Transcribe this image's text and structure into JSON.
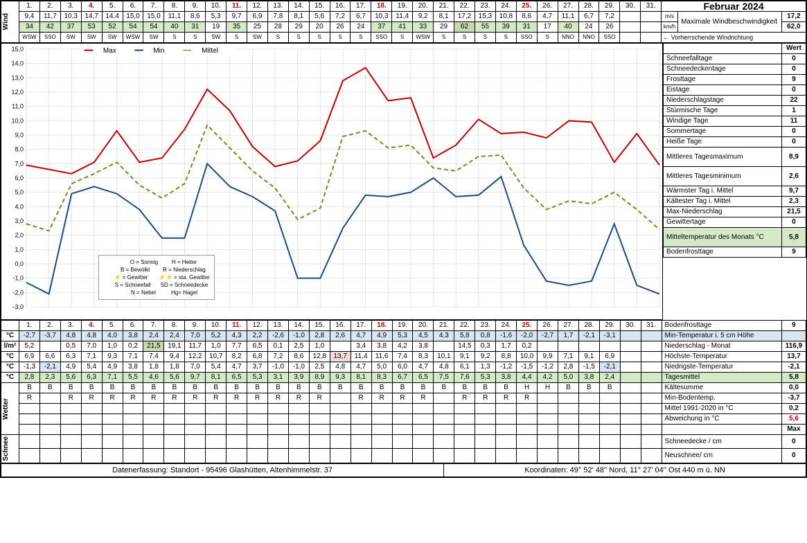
{
  "month_title": "Februar 2024",
  "days": [
    1,
    2,
    3,
    4,
    5,
    6,
    7,
    8,
    9,
    10,
    11,
    12,
    13,
    14,
    15,
    16,
    17,
    18,
    19,
    20,
    21,
    22,
    23,
    24,
    25,
    26,
    27,
    28,
    29,
    30,
    31
  ],
  "red_days": [
    4,
    11,
    18,
    25
  ],
  "wind": {
    "ms": [
      "9,4",
      "11,7",
      "10,3",
      "14,7",
      "14,4",
      "15,0",
      "15,0",
      "11,1",
      "8,6",
      "5,3",
      "9,7",
      "6,9",
      "7,8",
      "8,1",
      "5,6",
      "7,2",
      "6,7",
      "10,3",
      "11,4",
      "9,2",
      "8,1",
      "17,2",
      "15,3",
      "10,8",
      "8,6",
      "4,7",
      "11,1",
      "6,7",
      "7,2",
      "",
      ""
    ],
    "kmh": [
      "34",
      "42",
      "37",
      "53",
      "52",
      "54",
      "54",
      "40",
      "31",
      "19",
      "35",
      "25",
      "28",
      "29",
      "20",
      "26",
      "24",
      "37",
      "41",
      "33",
      "29",
      "62",
      "55",
      "39",
      "31",
      "17",
      "40",
      "24",
      "26",
      "",
      ""
    ],
    "dir": [
      "WSW",
      "SSO",
      "SW",
      "SW",
      "SW",
      "WSW",
      "SW",
      "S",
      "S",
      "SW",
      "S",
      "SW",
      "S",
      "S",
      "S",
      "S",
      "S",
      "SSO",
      "S",
      "WSW",
      "S",
      "S",
      "S",
      "S",
      "SSO",
      "S",
      "NNO",
      "NNO",
      "SSO",
      "",
      ""
    ]
  },
  "wind_summary": {
    "label_max": "Maximale Windbeschwindigkeit",
    "ms_max": "17,2",
    "ms_unit": "m/s",
    "kmh_max": "62,0",
    "kmh_unit": "km/h",
    "dir_label": "← Vorherrschende Windrichtung"
  },
  "chart": {
    "xlabels": [
      1,
      2,
      3,
      4,
      5,
      6,
      7,
      8,
      9,
      10,
      11,
      12,
      13,
      14,
      15,
      16,
      17,
      18,
      19,
      20,
      21,
      22,
      23,
      24,
      25,
      26,
      27,
      28,
      29
    ],
    "max": [
      6.9,
      6.6,
      6.3,
      7.1,
      9.3,
      7.1,
      7.4,
      9.4,
      12.2,
      10.7,
      8.2,
      6.8,
      7.2,
      8.6,
      12.8,
      13.7,
      11.4,
      11.6,
      7.4,
      8.3,
      10.1,
      9.1,
      9.2,
      8.8,
      10.0,
      9.9,
      7.1,
      9.1,
      6.9
    ],
    "min": [
      -1.3,
      -2.1,
      4.9,
      5.4,
      4.9,
      3.8,
      1.8,
      1.8,
      7.0,
      5.4,
      4.7,
      3.7,
      -1.0,
      -1.0,
      2.5,
      4.8,
      4.7,
      5.0,
      6.0,
      4.7,
      4.8,
      6.1,
      1.3,
      -1.2,
      -1.5,
      -1.2,
      2.8,
      -1.5,
      -2.1
    ],
    "mittel": [
      2.8,
      2.3,
      5.6,
      6.3,
      7.1,
      5.5,
      4.6,
      5.6,
      9.7,
      8.1,
      6.5,
      5.3,
      3.1,
      3.9,
      8.9,
      9.3,
      8.1,
      8.3,
      6.7,
      6.5,
      7.5,
      7.6,
      5.3,
      3.8,
      4.4,
      4.2,
      5.0,
      3.8,
      2.4
    ],
    "ymin": -3,
    "ymax": 15,
    "ystep": 1,
    "colors": {
      "max": "#c00000",
      "min": "#1f497d",
      "mittel": "#6b8e23"
    },
    "legend": [
      "Max",
      "Min",
      "Mittel"
    ],
    "symbol_legend": [
      [
        "O = Sonnig",
        "H = Heiter"
      ],
      [
        "B = Bewölkt",
        "R = Niederschlag"
      ],
      [
        "⚡ = Gewitter",
        "⚡⚡ = sta. Gewitter"
      ],
      [
        "S = Schneefall",
        "SD = Schneedecke"
      ],
      [
        "N = Nebel",
        "Hg= Hagel"
      ]
    ]
  },
  "rows": {
    "c_min5": {
      "label": "°C",
      "vals": [
        "-2,7",
        "-3,7",
        "4,8",
        "4,8",
        "4,0",
        "3,8",
        "2,4",
        "2,4",
        "7,0",
        "5,2",
        "4,3",
        "2,2",
        "-2,6",
        "-1,0",
        "2,8",
        "2,6",
        "4,7",
        "4,9",
        "5,3",
        "4,5",
        "4,3",
        "5,8",
        "0,8",
        "-1,6",
        "-2,0",
        "-2,7",
        "1,7",
        "-2,1",
        "-3,1",
        "",
        ""
      ],
      "rlabel": "Min-Temperatur i. 5 cm Höhe",
      "rval": ""
    },
    "precip": {
      "label": "l/m²",
      "vals": [
        "5,2",
        "",
        "0,5",
        "7,0",
        "1,0",
        "0,2",
        "21,5",
        "19,1",
        "11,7",
        "1,0",
        "7,7",
        "6,5",
        "0,1",
        "2,5",
        "1,0",
        "",
        "3,4",
        "3,8",
        "4,2",
        "3,8",
        "",
        "14,5",
        "0,3",
        "1,7",
        "0,2",
        "",
        "",
        "",
        "",
        "",
        ""
      ],
      "rlabel": "Niederschlag - Monat",
      "rval": "116,9"
    },
    "c_max": {
      "label": "°C",
      "vals": [
        "6,9",
        "6,6",
        "6,3",
        "7,1",
        "9,3",
        "7,1",
        "7,4",
        "9,4",
        "12,2",
        "10,7",
        "8,2",
        "6,8",
        "7,2",
        "8,6",
        "12,8",
        "13,7",
        "11,4",
        "11,6",
        "7,4",
        "8,3",
        "10,1",
        "9,1",
        "9,2",
        "8,8",
        "10,0",
        "9,9",
        "7,1",
        "9,1",
        "6,9",
        "",
        ""
      ],
      "rlabel": "Höchste-Temperatur",
      "rval": "13,7"
    },
    "c_min": {
      "label": "°C",
      "vals": [
        "-1,3",
        "-2,1",
        "4,9",
        "5,4",
        "4,9",
        "3,8",
        "1,8",
        "1,8",
        "7,0",
        "5,4",
        "4,7",
        "3,7",
        "-1,0",
        "-1,0",
        "2,5",
        "4,8",
        "4,7",
        "5,0",
        "6,0",
        "4,7",
        "4,8",
        "6,1",
        "1,3",
        "-1,2",
        "-1,5",
        "-1,2",
        "2,8",
        "-1,5",
        "-2,1",
        "",
        ""
      ],
      "rlabel": "Niedrigste-Temperatur",
      "rval": "-2,1"
    },
    "c_mean": {
      "label": "°C",
      "vals": [
        "2,8",
        "2,3",
        "5,6",
        "6,3",
        "7,1",
        "5,5",
        "4,6",
        "5,6",
        "9,7",
        "8,1",
        "6,5",
        "5,3",
        "3,1",
        "3,9",
        "8,9",
        "9,3",
        "8,1",
        "8,3",
        "6,7",
        "6,5",
        "7,5",
        "7,6",
        "5,3",
        "3,8",
        "4,4",
        "4,2",
        "5,0",
        "3,8",
        "2,4",
        "",
        ""
      ],
      "rlabel": "Tagesmittel",
      "rval": "5,8"
    },
    "w1": [
      "B",
      "B",
      "B",
      "B",
      "B",
      "B",
      "B",
      "B",
      "B",
      "B",
      "B",
      "B",
      "B",
      "B",
      "B",
      "B",
      "B",
      "B",
      "B",
      "B",
      "B",
      "B",
      "B",
      "B",
      "H",
      "H",
      "B",
      "B",
      "B",
      "",
      ""
    ],
    "w2": [
      "R",
      "",
      "R",
      "R",
      "R",
      "R",
      "R",
      "R",
      "R",
      "R",
      "R",
      "R",
      "R",
      "R",
      "R",
      "",
      "R",
      "R",
      "R",
      "R",
      "",
      "R",
      "R",
      "R",
      "R",
      "",
      "",
      "",
      "",
      "",
      ""
    ]
  },
  "stats": [
    {
      "l": "",
      "r": "Wert",
      "bold": true
    },
    {
      "l": "Schneefalltage",
      "r": "0"
    },
    {
      "l": "Schneedeckentage",
      "r": "0"
    },
    {
      "l": "Frosttage",
      "r": "9"
    },
    {
      "l": "Eistage",
      "r": "0"
    },
    {
      "l": "Niederschlagstage",
      "r": "22"
    },
    {
      "l": "Stürmische Tage",
      "r": "1"
    },
    {
      "l": "Windige Tage",
      "r": "11"
    },
    {
      "l": "Sommertage",
      "r": "0"
    },
    {
      "l": "Heiße Tage",
      "r": "0"
    },
    {
      "l": "Mittleres Tagesmaximum",
      "r": "8,9",
      "tall": true
    },
    {
      "l": "Mittleres Tagesminimum",
      "r": "2,6",
      "tall": true
    },
    {
      "l": "Wärmster Tag i. Mittel",
      "r": "9,7"
    },
    {
      "l": "Kältester Tag i. Mittel",
      "r": "2,3"
    },
    {
      "l": "Max-Niederschlag",
      "r": "21,5"
    },
    {
      "l": "Gewittertage",
      "r": "0"
    },
    {
      "l": "Mitteltemperatur des Monats °C",
      "r": "5,8",
      "green": true,
      "tall": true
    },
    {
      "l": "Bodenfrosttage",
      "r": "9"
    }
  ],
  "bottom_stats": [
    {
      "l": "Kältesumme",
      "r": "0,0"
    },
    {
      "l": "Min-Bodentemp.",
      "r": "-3,7"
    },
    {
      "l": "Mittel 1991-2020 in °C",
      "r": "0,2"
    },
    {
      "l": "Abweichung in °C",
      "r": "5,6",
      "red": true
    },
    {
      "l": "",
      "r": "Max",
      "bold": true
    },
    {
      "l": "Schneedecke / cm",
      "r": "0"
    },
    {
      "l": "Neuschnee/ cm",
      "r": "0"
    }
  ],
  "footer": {
    "left": "Datenerfassung:  Standort  -   95496  Glashütten, Altenhimmelstr. 37",
    "right": "Koordinaten:  49° 52' 48'' Nord,   11° 27' 04'' Ost   440 m ü. NN"
  }
}
